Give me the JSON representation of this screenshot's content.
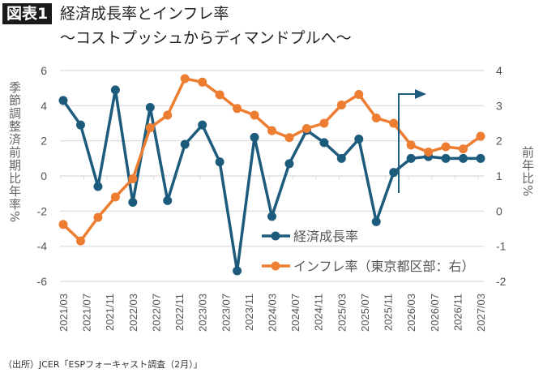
{
  "header": {
    "badge": "図表1",
    "title": "経済成長率とインフレ率",
    "subtitle": "～コストプッシュからディマンドプルへ～"
  },
  "footer": {
    "source": "（出所）JCER「ESPフォーキャスト調査（2月）」"
  },
  "chart_data": {
    "type": "line",
    "title": "経済成長率とインフレ率",
    "subtitle": "～コストプッシュからディマンドプルへ～",
    "ylabel_left": "季節調整済前期比年率%",
    "ylabel_right": "前年比%",
    "ylim_left": [
      -6,
      6
    ],
    "ylim_right": [
      -2,
      4
    ],
    "yticks_left": [
      "6",
      "4",
      "2",
      "0",
      "-2",
      "-4",
      "-6"
    ],
    "yticks_right": [
      "4",
      "3",
      "2",
      "1",
      "0",
      "-1",
      "-2"
    ],
    "grid": true,
    "legend_position": "bottom-center",
    "x_tick_labels": [
      "2021/03",
      "2021/07",
      "2021/11",
      "2022/03",
      "2022/07",
      "2022/11",
      "2023/03",
      "2023/07",
      "2023/11",
      "2024/03",
      "2024/07",
      "2024/11",
      "2025/03",
      "2025/07",
      "2025/11",
      "2026/03",
      "2026/07",
      "2026/11",
      "2027/03"
    ],
    "x": [
      "2021/03",
      "2021/06",
      "2021/09",
      "2021/12",
      "2022/03",
      "2022/06",
      "2022/09",
      "2022/12",
      "2023/03",
      "2023/06",
      "2023/09",
      "2023/12",
      "2024/03",
      "2024/06",
      "2024/09",
      "2024/12",
      "2025/03",
      "2025/06",
      "2025/09",
      "2025/12",
      "2026/03",
      "2026/06",
      "2026/09",
      "2026/12",
      "2027/03"
    ],
    "series": [
      {
        "name": "経済成長率",
        "axis": "left",
        "color": "#1d5b7c",
        "values": [
          4.3,
          2.9,
          -0.6,
          4.9,
          -1.5,
          3.9,
          -1.4,
          1.8,
          2.9,
          0.8,
          -5.4,
          2.2,
          -2.3,
          0.7,
          2.6,
          1.9,
          1.0,
          2.1,
          -2.6,
          0.2,
          1.0,
          1.1,
          1.0,
          1.0,
          1.0
        ]
      },
      {
        "name": "インフレ率（東京都区部：右）",
        "axis": "right",
        "color": "#ed7d31",
        "values": [
          -0.38,
          -0.85,
          -0.18,
          0.4,
          0.92,
          2.37,
          2.73,
          3.77,
          3.67,
          3.31,
          2.92,
          2.73,
          2.29,
          2.09,
          2.35,
          2.5,
          3.02,
          3.32,
          2.65,
          2.5,
          1.88,
          1.68,
          1.83,
          1.77,
          2.13
        ]
      }
    ]
  }
}
